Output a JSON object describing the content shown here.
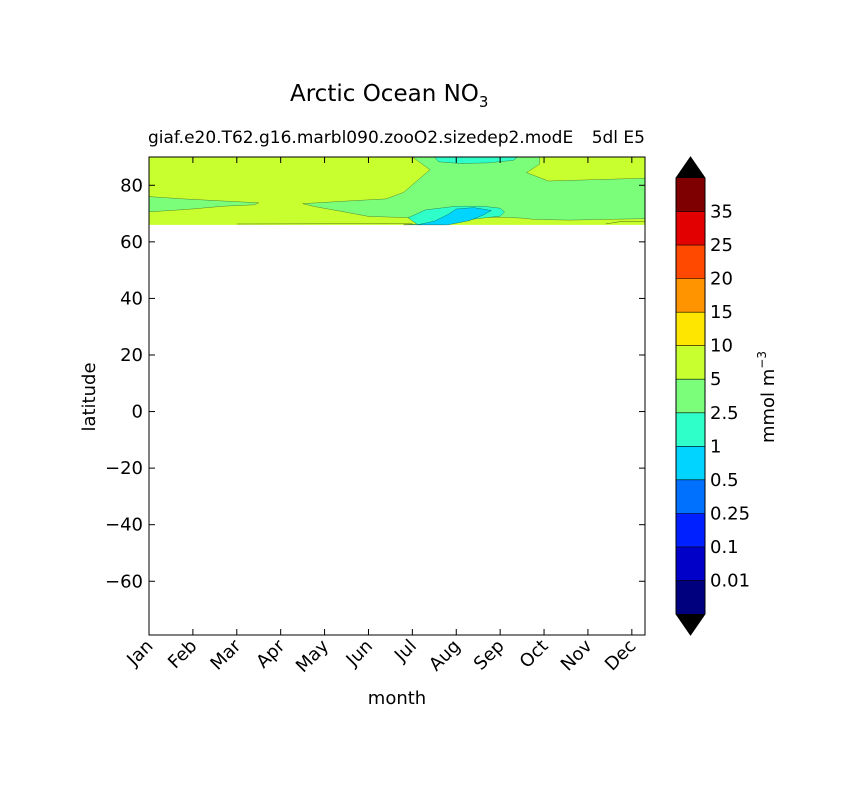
{
  "chart_data": {
    "type": "heatmap",
    "title": "Arctic Ocean NO",
    "title_subscript": "3",
    "subtitle_left": "giaf.e20.T62.g16.marbl090.zooO2.sizedep2.modE",
    "subtitle_right": "5dl E5",
    "xlabel": "month",
    "ylabel": "latitude",
    "x_categories": [
      "Jan",
      "Feb",
      "Mar",
      "Apr",
      "May",
      "Jun",
      "Jul",
      "Aug",
      "Sep",
      "Oct",
      "Nov",
      "Dec"
    ],
    "xlim": [
      0,
      11.3
    ],
    "ylim": [
      -79,
      90
    ],
    "yticks": [
      -60,
      -40,
      -20,
      0,
      20,
      40,
      60,
      80
    ],
    "ytick_labels": [
      "−60",
      "−40",
      "−20",
      "0",
      "20",
      "40",
      "60",
      "80"
    ],
    "data_lat_range": [
      66,
      90
    ],
    "colorbar": {
      "label": "mmol m",
      "label_superscript": "−3",
      "extend": "both",
      "tick_labels": [
        "0.01",
        "0.1",
        "0.25",
        "0.5",
        "1",
        "2.5",
        "5",
        "10",
        "15",
        "20",
        "25",
        "35"
      ],
      "colors": [
        "#00007f",
        "#0000c8",
        "#0020ff",
        "#0070ff",
        "#00d4ff",
        "#2fffc8",
        "#7bff7b",
        "#c8ff2f",
        "#ffe600",
        "#ff9400",
        "#ff4800",
        "#e30000",
        "#7f0000"
      ],
      "under_color": "#000000",
      "over_color": "#000000"
    },
    "fields": [
      {
        "level": "5-10",
        "color": "#c8ff2f",
        "region": "background 66-90N most months"
      },
      {
        "level": "2.5-5",
        "color": "#7bff7b",
        "region": "Jul-Oct and 70-75N band"
      },
      {
        "level": "1-2.5",
        "color": "#2fffc8",
        "region": "Aug near 88N and Aug 68-72N"
      },
      {
        "level": "0.5-1",
        "color": "#00d4ff",
        "region": "Aug 66-72N"
      }
    ]
  }
}
